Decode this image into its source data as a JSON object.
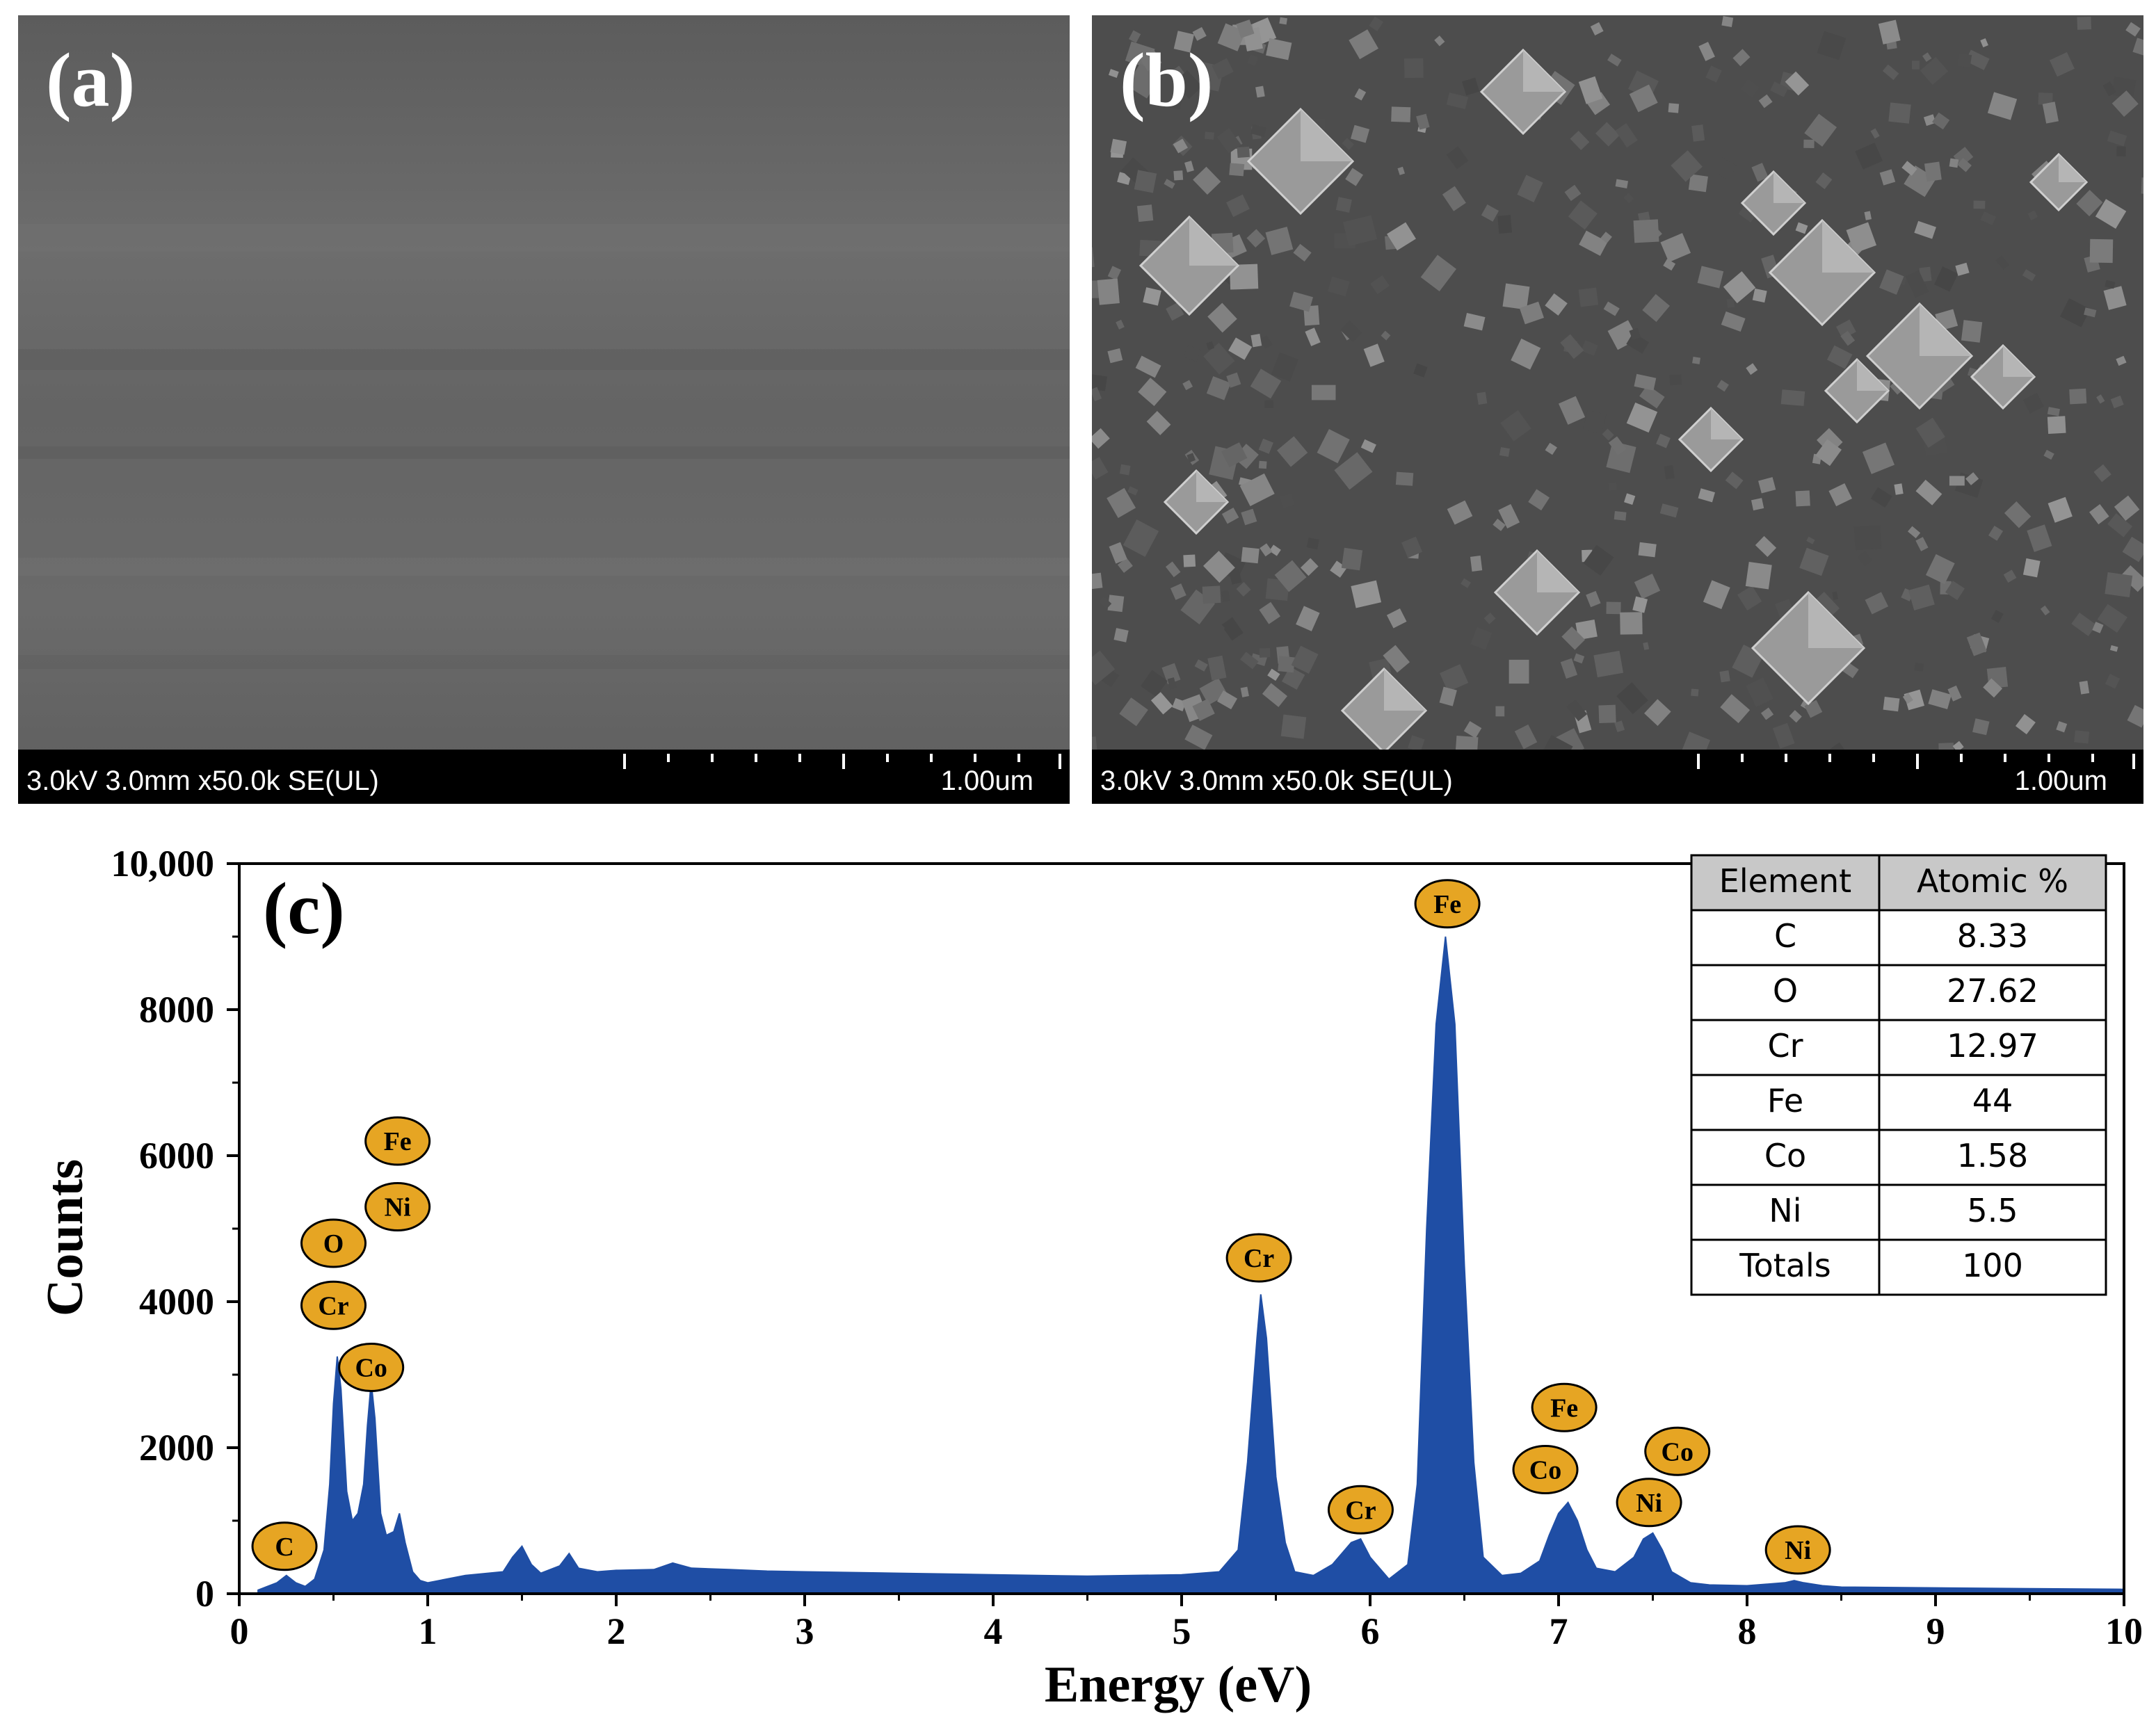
{
  "panels": {
    "a": {
      "label": "(a)",
      "info": "3.0kV 3.0mm x50.0k SE(UL)",
      "scale": "1.00um"
    },
    "b": {
      "label": "(b)",
      "info": "3.0kV 3.0mm x50.0k SE(UL)",
      "scale": "1.00um"
    }
  },
  "chart_data": {
    "type": "area",
    "panel_label": "(c)",
    "xlabel": "Energy (eV)",
    "ylabel": "Counts",
    "xlim": [
      0,
      10
    ],
    "ylim": [
      0,
      10000
    ],
    "xticks": [
      "0",
      "1",
      "2",
      "3",
      "4",
      "5",
      "6",
      "7",
      "8",
      "9",
      "10"
    ],
    "yticks": [
      "0",
      "2000",
      "4000",
      "6000",
      "8000",
      "10,000"
    ],
    "color": "#1f4ea5",
    "series": [
      {
        "x": [
          0.1,
          0.2,
          0.25,
          0.3,
          0.35,
          0.4,
          0.45,
          0.48,
          0.5,
          0.52,
          0.54,
          0.57,
          0.6,
          0.63,
          0.66,
          0.68,
          0.7,
          0.72,
          0.75,
          0.78,
          0.82,
          0.85,
          0.88,
          0.92,
          0.96,
          1.0,
          1.2,
          1.4,
          1.45,
          1.5,
          1.55,
          1.6,
          1.7,
          1.75,
          1.8,
          1.9,
          2.0,
          2.2,
          2.3,
          2.4,
          2.6,
          2.8,
          3.0,
          3.5,
          4.0,
          4.5,
          5.0,
          5.2,
          5.3,
          5.35,
          5.4,
          5.42,
          5.45,
          5.5,
          5.55,
          5.6,
          5.7,
          5.8,
          5.9,
          5.95,
          6.0,
          6.1,
          6.2,
          6.25,
          6.3,
          6.35,
          6.4,
          6.45,
          6.5,
          6.55,
          6.6,
          6.7,
          6.8,
          6.9,
          6.95,
          7.0,
          7.05,
          7.1,
          7.15,
          7.2,
          7.3,
          7.4,
          7.45,
          7.5,
          7.55,
          7.6,
          7.7,
          7.8,
          8.0,
          8.2,
          8.25,
          8.3,
          8.4,
          8.5,
          9.0,
          9.5,
          10.0
        ],
        "y": [
          50,
          150,
          250,
          150,
          100,
          200,
          600,
          1500,
          2600,
          3250,
          2800,
          1400,
          1000,
          1100,
          1500,
          2300,
          2900,
          2400,
          1100,
          800,
          850,
          1100,
          700,
          300,
          180,
          150,
          250,
          300,
          500,
          650,
          400,
          280,
          380,
          550,
          350,
          300,
          320,
          330,
          420,
          350,
          330,
          310,
          300,
          280,
          260,
          240,
          260,
          300,
          600,
          1800,
          3500,
          4100,
          3500,
          1600,
          700,
          300,
          250,
          400,
          700,
          750,
          500,
          200,
          400,
          1500,
          5000,
          7800,
          9000,
          7800,
          4500,
          1800,
          500,
          250,
          280,
          450,
          800,
          1100,
          1250,
          1000,
          600,
          350,
          300,
          500,
          750,
          830,
          600,
          300,
          150,
          120,
          110,
          150,
          180,
          150,
          110,
          90,
          80,
          70,
          60
        ]
      }
    ],
    "peak_labels": [
      {
        "text": "C",
        "x": 0.24,
        "y": 650
      },
      {
        "text": "O",
        "x": 0.5,
        "y": 4800
      },
      {
        "text": "Cr",
        "x": 0.5,
        "y": 3950
      },
      {
        "text": "Fe",
        "x": 0.84,
        "y": 6200
      },
      {
        "text": "Ni",
        "x": 0.84,
        "y": 5300
      },
      {
        "text": "Co",
        "x": 0.7,
        "y": 3100
      },
      {
        "text": "Cr",
        "x": 5.41,
        "y": 4600
      },
      {
        "text": "Fe",
        "x": 6.41,
        "y": 9450
      },
      {
        "text": "Cr",
        "x": 5.95,
        "y": 1150
      },
      {
        "text": "Fe",
        "x": 7.03,
        "y": 2550
      },
      {
        "text": "Co",
        "x": 6.93,
        "y": 1700
      },
      {
        "text": "Co",
        "x": 7.63,
        "y": 1950
      },
      {
        "text": "Ni",
        "x": 7.48,
        "y": 1250
      },
      {
        "text": "Ni",
        "x": 8.27,
        "y": 600
      }
    ],
    "table": {
      "headers": [
        "Element",
        "Atomic %"
      ],
      "rows": [
        [
          "C",
          "8.33"
        ],
        [
          "O",
          "27.62"
        ],
        [
          "Cr",
          "12.97"
        ],
        [
          "Fe",
          "44"
        ],
        [
          "Co",
          "1.58"
        ],
        [
          "Ni",
          "5.5"
        ],
        [
          "Totals",
          "100"
        ]
      ]
    },
    "grid": false,
    "legend": "none"
  }
}
